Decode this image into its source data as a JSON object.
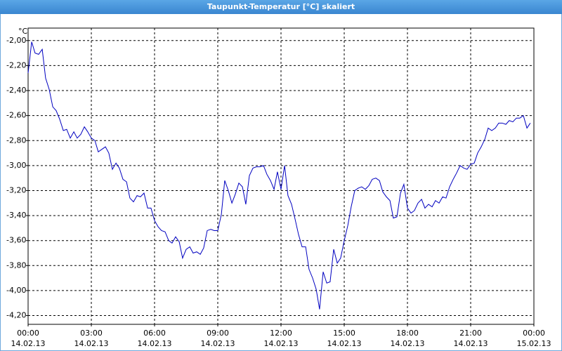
{
  "window": {
    "title": "Taupunkt-Temperatur [°C] skaliert"
  },
  "chart_data": {
    "type": "line",
    "y_label": "°C",
    "color": "#0000c0",
    "grid": true,
    "xlim": [
      0,
      24
    ],
    "ylim": [
      -4.27,
      -1.9
    ],
    "xticks": [
      {
        "value": 0,
        "time": "00:00",
        "date": "14.02.13"
      },
      {
        "value": 3,
        "time": "03:00",
        "date": "14.02.13"
      },
      {
        "value": 6,
        "time": "06:00",
        "date": "14.02.13"
      },
      {
        "value": 9,
        "time": "09:00",
        "date": "14.02.13"
      },
      {
        "value": 12,
        "time": "12:00",
        "date": "14.02.13"
      },
      {
        "value": 15,
        "time": "15:00",
        "date": "14.02.13"
      },
      {
        "value": 18,
        "time": "18:00",
        "date": "14.02.13"
      },
      {
        "value": 21,
        "time": "21:00",
        "date": "14.02.13"
      },
      {
        "value": 24,
        "time": "00:00",
        "date": "15.02.13"
      }
    ],
    "yticks": [
      {
        "value": -2.0,
        "label": "-2,00"
      },
      {
        "value": -2.2,
        "label": "-2,20"
      },
      {
        "value": -2.4,
        "label": "-2,40"
      },
      {
        "value": -2.6,
        "label": "-2,60"
      },
      {
        "value": -2.8,
        "label": "-2,80"
      },
      {
        "value": -3.0,
        "label": "-3,00"
      },
      {
        "value": -3.2,
        "label": "-3,20"
      },
      {
        "value": -3.4,
        "label": "-3,40"
      },
      {
        "value": -3.6,
        "label": "-3,60"
      },
      {
        "value": -3.8,
        "label": "-3,80"
      },
      {
        "value": -4.0,
        "label": "-4,00"
      },
      {
        "value": -4.2,
        "label": "-4,20"
      }
    ],
    "x": [
      0,
      0.17,
      0.33,
      0.5,
      0.67,
      0.83,
      1,
      1.17,
      1.33,
      1.5,
      1.67,
      1.83,
      2,
      2.17,
      2.33,
      2.5,
      2.67,
      2.83,
      3,
      3.17,
      3.33,
      3.5,
      3.67,
      3.83,
      4,
      4.17,
      4.33,
      4.5,
      4.67,
      4.83,
      5,
      5.17,
      5.33,
      5.5,
      5.67,
      5.83,
      6,
      6.17,
      6.33,
      6.5,
      6.67,
      6.83,
      7,
      7.17,
      7.33,
      7.5,
      7.67,
      7.83,
      8,
      8.17,
      8.33,
      8.5,
      8.67,
      8.83,
      9,
      9.17,
      9.33,
      9.5,
      9.67,
      9.83,
      10,
      10.17,
      10.33,
      10.5,
      10.67,
      10.83,
      11,
      11.17,
      11.33,
      11.5,
      11.67,
      11.83,
      12,
      12.17,
      12.33,
      12.5,
      12.67,
      12.83,
      13,
      13.17,
      13.33,
      13.5,
      13.67,
      13.83,
      14,
      14.17,
      14.33,
      14.5,
      14.67,
      14.83,
      15,
      15.17,
      15.33,
      15.5,
      15.67,
      15.83,
      16,
      16.17,
      16.33,
      16.5,
      16.67,
      16.83,
      17,
      17.17,
      17.33,
      17.5,
      17.67,
      17.83,
      18,
      18.17,
      18.33,
      18.5,
      18.67,
      18.83,
      19,
      19.17,
      19.33,
      19.5,
      19.67,
      19.83,
      20,
      20.17,
      20.33,
      20.5,
      20.67,
      20.83,
      21,
      21.17,
      21.33,
      21.5,
      21.67,
      21.83,
      22,
      22.17,
      22.33,
      22.5,
      22.67,
      22.83,
      23,
      23.17,
      23.33,
      23.5,
      23.67,
      23.83
    ],
    "values": [
      -2.26,
      -2.01,
      -2.1,
      -2.11,
      -2.07,
      -2.3,
      -2.39,
      -2.53,
      -2.56,
      -2.63,
      -2.72,
      -2.71,
      -2.78,
      -2.73,
      -2.78,
      -2.75,
      -2.69,
      -2.73,
      -2.78,
      -2.8,
      -2.89,
      -2.87,
      -2.85,
      -2.9,
      -3.03,
      -2.98,
      -3.02,
      -3.11,
      -3.13,
      -3.26,
      -3.29,
      -3.24,
      -3.25,
      -3.22,
      -3.34,
      -3.34,
      -3.44,
      -3.49,
      -3.52,
      -3.53,
      -3.6,
      -3.62,
      -3.57,
      -3.61,
      -3.74,
      -3.67,
      -3.65,
      -3.7,
      -3.69,
      -3.71,
      -3.66,
      -3.52,
      -3.51,
      -3.52,
      -3.52,
      -3.39,
      -3.12,
      -3.2,
      -3.3,
      -3.23,
      -3.14,
      -3.17,
      -3.31,
      -3.08,
      -3.02,
      -3.01,
      -3.01,
      -3.0,
      -3.07,
      -3.12,
      -3.19,
      -3.05,
      -3.19,
      -3.0,
      -3.24,
      -3.31,
      -3.43,
      -3.55,
      -3.65,
      -3.65,
      -3.83,
      -3.9,
      -3.99,
      -4.15,
      -3.85,
      -3.94,
      -3.93,
      -3.67,
      -3.78,
      -3.74,
      -3.6,
      -3.48,
      -3.33,
      -3.2,
      -3.18,
      -3.17,
      -3.19,
      -3.16,
      -3.11,
      -3.1,
      -3.12,
      -3.21,
      -3.25,
      -3.28,
      -3.42,
      -3.41,
      -3.22,
      -3.15,
      -3.34,
      -3.38,
      -3.36,
      -3.3,
      -3.27,
      -3.34,
      -3.31,
      -3.33,
      -3.28,
      -3.3,
      -3.25,
      -3.26,
      -3.17,
      -3.11,
      -3.06,
      -3.0,
      -3.02,
      -3.03,
      -2.99,
      -2.98,
      -2.9,
      -2.85,
      -2.79,
      -2.7,
      -2.72,
      -2.7,
      -2.66,
      -2.66,
      -2.67,
      -2.64,
      -2.65,
      -2.62,
      -2.62,
      -2.6,
      -2.7,
      -2.66
    ]
  }
}
